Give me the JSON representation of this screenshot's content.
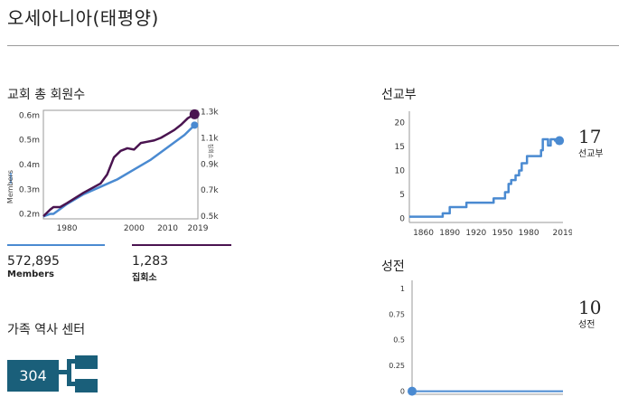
{
  "page": {
    "title": "오세아니아(태평양)"
  },
  "colors": {
    "members": "#4a8ad1",
    "congregations": "#4a1450",
    "accent": "#1a5f7a"
  },
  "membership": {
    "section_title": "교회 총 회원수",
    "members_stat": {
      "value": "572,895",
      "label": "Members"
    },
    "units_stat": {
      "value": "1,283",
      "label": "집회소"
    }
  },
  "missionaries": {
    "section_title": "선교부",
    "current_value": "17",
    "current_label": "선교부"
  },
  "temples": {
    "section_title": "성전",
    "current_value": "10",
    "current_label": "성전"
  },
  "family_history": {
    "section_title": "가족 역사 센터",
    "count": "304",
    "icon": "family-tree-icon"
  },
  "chart_data": [
    {
      "id": "membership",
      "type": "line",
      "ylabel": "Members",
      "y2label": "집회소",
      "x_ticks": [
        "1980",
        "2000",
        "2010",
        "2019"
      ],
      "x_tick_values": [
        1980,
        2000,
        2010,
        2019
      ],
      "y_ticks": [
        "0.2m",
        "0.3m",
        "0.4m",
        "0.5m",
        "0.6m"
      ],
      "y_tick_values": [
        0.2,
        0.3,
        0.4,
        0.5,
        0.6
      ],
      "y2_ticks": [
        "0.5k",
        "0.7k",
        "0.9k",
        "1.1k",
        "1.3k"
      ],
      "y2_tick_values": [
        0.5,
        0.7,
        0.9,
        1.1,
        1.3
      ],
      "xlim": [
        1973,
        2019
      ],
      "ylim": [
        0.18,
        0.62
      ],
      "y2lim": [
        0.48,
        1.31
      ],
      "series": [
        {
          "name": "Members",
          "axis": "left",
          "x": [
            1973,
            1975,
            1976,
            1978,
            1980,
            1985,
            1990,
            1995,
            2000,
            2005,
            2010,
            2015,
            2018
          ],
          "y": [
            0.19,
            0.2,
            0.2,
            0.22,
            0.24,
            0.28,
            0.31,
            0.34,
            0.38,
            0.42,
            0.47,
            0.52,
            0.56
          ]
        },
        {
          "name": "집회소",
          "axis": "right",
          "x": [
            1973,
            1975,
            1976,
            1978,
            1980,
            1985,
            1990,
            1992,
            1994,
            1996,
            1998,
            2000,
            2002,
            2004,
            2006,
            2008,
            2010,
            2012,
            2014,
            2016,
            2018
          ],
          "y": [
            0.5,
            0.55,
            0.57,
            0.57,
            0.6,
            0.68,
            0.75,
            0.82,
            0.95,
            1.0,
            1.02,
            1.01,
            1.06,
            1.07,
            1.08,
            1.1,
            1.13,
            1.16,
            1.2,
            1.25,
            1.28
          ]
        }
      ]
    },
    {
      "id": "missionaries",
      "type": "line",
      "x_ticks": [
        "1860",
        "1890",
        "1920",
        "1950",
        "1980",
        "2019"
      ],
      "x_tick_values": [
        1860,
        1890,
        1920,
        1950,
        1980,
        2019
      ],
      "y_ticks": [
        "0",
        "5",
        "10",
        "15",
        "20"
      ],
      "y_tick_values": [
        0,
        5,
        10,
        15,
        20
      ],
      "xlim": [
        1844,
        2019
      ],
      "ylim": [
        -0.8,
        21
      ],
      "series": [
        {
          "name": "선교부",
          "x": [
            1844,
            1865,
            1865,
            1882,
            1882,
            1890,
            1890,
            1909,
            1909,
            1940,
            1940,
            1953,
            1953,
            1957,
            1957,
            1960,
            1960,
            1965,
            1965,
            1969,
            1969,
            1972,
            1972,
            1978,
            1978,
            1994,
            1994,
            1996,
            1996,
            2002,
            2002,
            2005,
            2005,
            2010,
            2010,
            2015
          ],
          "y": [
            0.4,
            0.4,
            0.4,
            0.4,
            1.1,
            1.1,
            2.4,
            2.4,
            3.3,
            3.3,
            4.2,
            4.2,
            5.5,
            5.5,
            7.2,
            7.2,
            8.0,
            8.0,
            9.0,
            9.0,
            10.0,
            10.0,
            11.5,
            11.5,
            13.0,
            13.0,
            14.2,
            14.2,
            16.5,
            16.5,
            15.2,
            15.2,
            16.5,
            16.5,
            16.2,
            16.2
          ]
        }
      ]
    },
    {
      "id": "temples",
      "type": "line",
      "y_ticks": [
        "0",
        "0.25",
        "0.5",
        "0.75",
        "1"
      ],
      "y_tick_values": [
        0,
        0.25,
        0.5,
        0.75,
        1
      ],
      "xlim": [
        0,
        1
      ],
      "ylim": [
        -0.03,
        1.06
      ],
      "series": [
        {
          "name": "성전",
          "x": [
            0,
            1
          ],
          "y": [
            0,
            0
          ]
        }
      ]
    }
  ]
}
